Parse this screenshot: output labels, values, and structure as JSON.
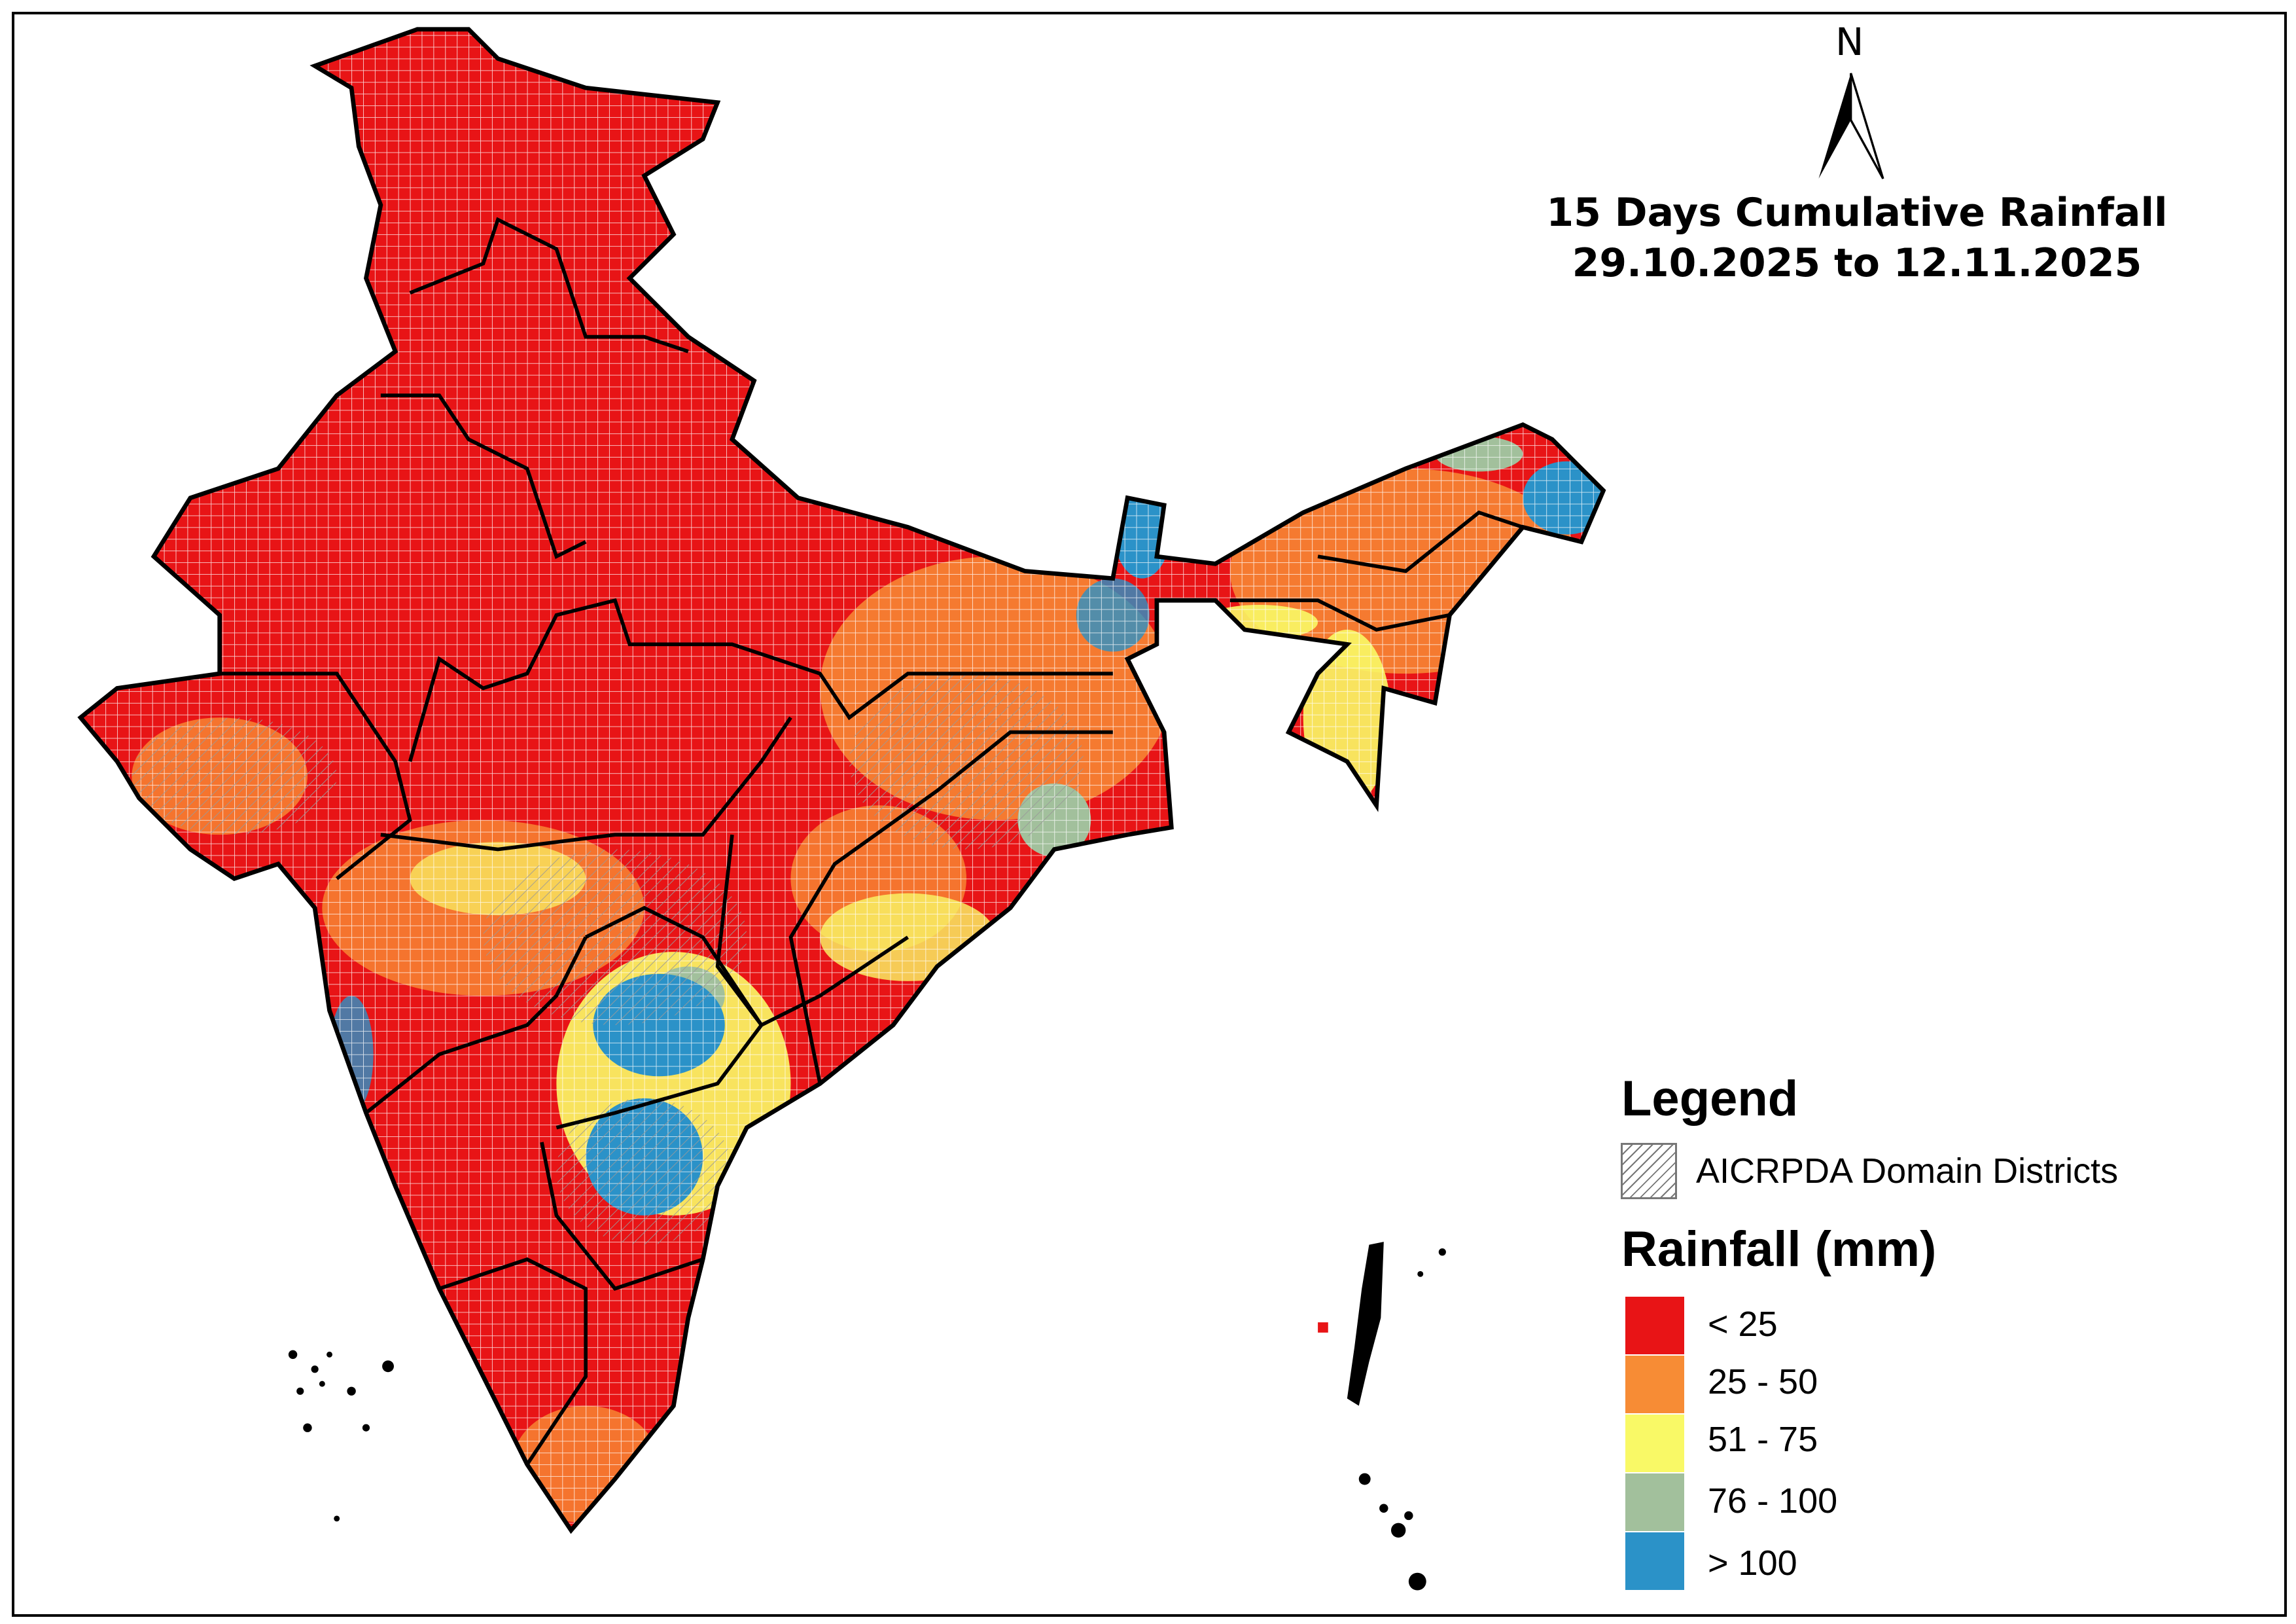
{
  "title": {
    "line1": "15 Days Cumulative Rainfall",
    "line2": "29.10.2025 to 12.11.2025"
  },
  "north_arrow": {
    "label": "N",
    "icon": "north-arrow-icon"
  },
  "legend": {
    "heading": "Legend",
    "domain_label": "AICRPDA Domain Districts",
    "rainfall_heading": "Rainfall (mm)",
    "classes": [
      {
        "label": "< 25",
        "color": "#e81416"
      },
      {
        "label": "25 - 50",
        "color": "#f78c35"
      },
      {
        "label": "51 - 75",
        "color": "#f9f966"
      },
      {
        "label": "76 - 100",
        "color": "#a2c09c"
      },
      {
        "label": "> 100",
        "color": "#2b92c8"
      }
    ]
  }
}
